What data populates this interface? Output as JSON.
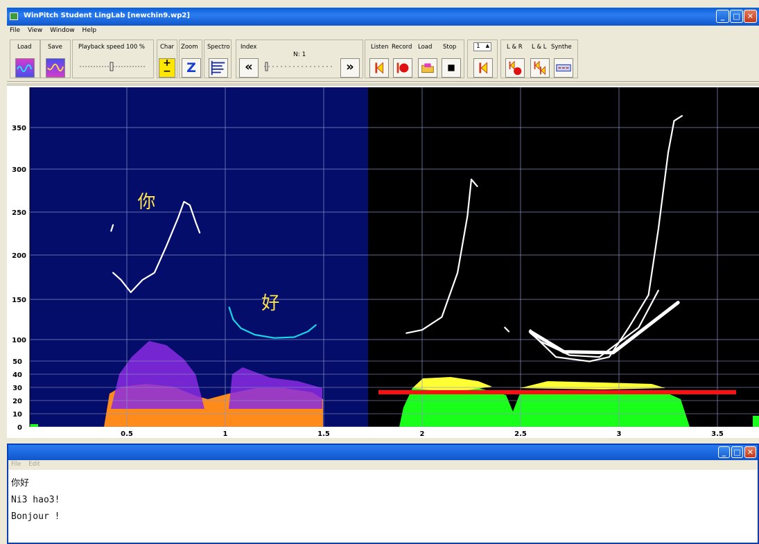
{
  "window": {
    "title": "WinPitch Student LingLab  [newchin9.wp2]",
    "minimize_label": "_",
    "maximize_label": "□",
    "close_label": "✕"
  },
  "menu": [
    "File",
    "View",
    "Window",
    "Help"
  ],
  "toolbar": {
    "load_label": "Load",
    "save_label": "Save",
    "playback_label": "Playback speed 100 %",
    "char_label": "Char",
    "zoom_label": "Zoom",
    "zoom_button": "Z",
    "char_plus": "+",
    "char_minus": "−",
    "spectro_label": "Spectro",
    "index_label": "Index",
    "index_value": "N: 1",
    "index_prev": "«",
    "index_next": "»",
    "listen_label": "Listen",
    "record_label": "Record",
    "load2_label": "Load",
    "stop_label": "Stop",
    "counter_value": "1",
    "lr_label": "L & R",
    "ll_label": "L & L",
    "synthe_label": "Synthe"
  },
  "chart_data": {
    "type": "line",
    "title": "",
    "xlabel": "",
    "ylabel": "",
    "xlim": [
      0,
      3.7
    ],
    "ylim": [
      0,
      380
    ],
    "x_ticks": [
      0.5,
      1,
      1.5,
      2,
      2.5,
      3,
      3.5
    ],
    "x_tick_labels": [
      "0.5",
      "1",
      "1.5",
      "2",
      "2.5",
      "3",
      "3.5"
    ],
    "y_ticks_pitch": [
      100,
      150,
      200,
      250,
      300,
      350
    ],
    "y_ticks_intensity": [
      0,
      10,
      20,
      30,
      40,
      50
    ],
    "grid": true,
    "annotations": [
      {
        "text": "你",
        "x": 0.6,
        "y": 255
      },
      {
        "text": "好",
        "x": 1.23,
        "y": 138
      }
    ],
    "series": [
      {
        "color": "#ffffff",
        "points": [
          [
            0.42,
            228
          ],
          [
            0.43,
            235
          ]
        ]
      },
      {
        "color": "#ffffff",
        "points": [
          [
            0.43,
            180
          ],
          [
            0.47,
            172
          ],
          [
            0.52,
            158
          ],
          [
            0.58,
            172
          ],
          [
            0.64,
            180
          ],
          [
            0.7,
            210
          ],
          [
            0.76,
            243
          ],
          [
            0.79,
            262
          ],
          [
            0.82,
            258
          ],
          [
            0.85,
            238
          ],
          [
            0.87,
            226
          ]
        ]
      },
      {
        "color": "#19d6e6",
        "points": [
          [
            1.02,
            140
          ],
          [
            1.04,
            125
          ],
          [
            1.08,
            114
          ],
          [
            1.15,
            106
          ],
          [
            1.25,
            102
          ],
          [
            1.35,
            103
          ],
          [
            1.42,
            110
          ],
          [
            1.46,
            118
          ]
        ]
      },
      {
        "color": "#ffffff",
        "points": [
          [
            1.92,
            108
          ],
          [
            2.0,
            112
          ],
          [
            2.1,
            128
          ],
          [
            2.18,
            180
          ],
          [
            2.23,
            245
          ],
          [
            2.25,
            288
          ],
          [
            2.28,
            280
          ]
        ]
      },
      {
        "color": "#ffffff",
        "points": [
          [
            2.42,
            115
          ],
          [
            2.44,
            110
          ]
        ]
      },
      {
        "color": "#ffffff",
        "points": [
          [
            2.55,
            112
          ],
          [
            2.58,
            102
          ],
          [
            2.68,
            80
          ],
          [
            2.85,
            75
          ],
          [
            2.95,
            80
          ],
          [
            3.05,
            115
          ],
          [
            3.15,
            155
          ],
          [
            3.2,
            230
          ],
          [
            3.25,
            320
          ],
          [
            3.28,
            358
          ],
          [
            3.32,
            364
          ]
        ]
      },
      {
        "color": "#ffffff",
        "points": [
          [
            2.55,
            108
          ],
          [
            2.6,
            98
          ],
          [
            2.75,
            82
          ],
          [
            2.9,
            80
          ],
          [
            3.1,
            115
          ],
          [
            3.2,
            160
          ]
        ]
      },
      {
        "color": "#ffffff",
        "points": [
          [
            2.55,
            110
          ],
          [
            2.72,
            86
          ],
          [
            2.97,
            85
          ],
          [
            3.3,
            146
          ]
        ]
      }
    ]
  },
  "text_window": {
    "menu": [
      "File",
      "Edit"
    ],
    "lines": [
      "你好",
      "Ni3 hao3!",
      "Bonjour !"
    ]
  }
}
